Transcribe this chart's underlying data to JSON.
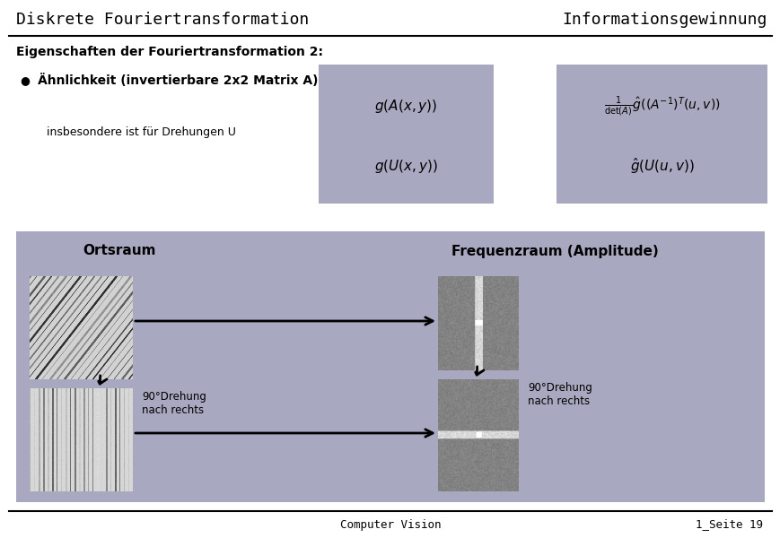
{
  "title_left": "Diskrete Fouriertransformation",
  "title_right": "Informationsgewinnung",
  "subtitle": "Eigenschaften der Fouriertransformation 2:",
  "bullet_text": "Ähnlichkeit (invertierbare 2x2 Matrix A)",
  "sub_text": "insbesondere ist für Drehungen U",
  "formula1": "$g(A(x,y))$",
  "formula2": "$\\frac{1}{\\det(A)}\\hat{g}((A^{-1})^T(u,v))$",
  "formula3": "$g(U(x,y))$",
  "formula4": "$\\hat{g}(U(u,v))$",
  "box_color": "#a8a8c0",
  "bg_color": "#ffffff",
  "label_ortsraum": "Ortsraum",
  "label_frequenzraum": "Frequenzraum (Amplitude)",
  "rotation_label": "90°Drehung\nnach rechts",
  "footer_left": "Computer Vision",
  "footer_right": "1_Seite 19",
  "title_fontsize": 13,
  "subtitle_fontsize": 10,
  "bullet_fontsize": 10,
  "formula_fontsize": 11
}
